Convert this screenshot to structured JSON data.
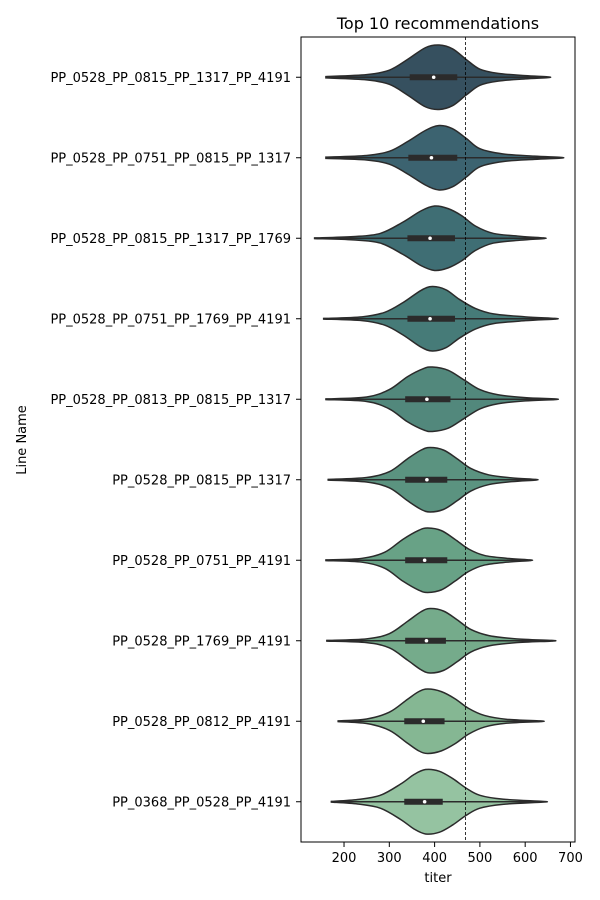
{
  "chart_data": {
    "type": "violin",
    "title": "Top 10 recommendations",
    "xlabel": "titer",
    "ylabel": "Line Name",
    "xlim": [
      105,
      710
    ],
    "xticks": [
      200,
      300,
      400,
      500,
      600,
      700
    ],
    "reference_line_x": 468,
    "grid": false,
    "categories": [
      "PP_0528_PP_0815_PP_1317_PP_4191",
      "PP_0528_PP_0751_PP_0815_PP_1317",
      "PP_0528_PP_0815_PP_1317_PP_1769",
      "PP_0528_PP_0751_PP_1769_PP_4191",
      "PP_0528_PP_0813_PP_0815_PP_1317",
      "PP_0528_PP_0815_PP_1317",
      "PP_0528_PP_0751_PP_4191",
      "PP_0528_PP_1769_PP_4191",
      "PP_0528_PP_0812_PP_4191",
      "PP_0368_PP_0528_PP_4191"
    ],
    "colors": [
      "#36505f",
      "#3c6370",
      "#3f6e74",
      "#467b78",
      "#52887c",
      "#5b9380",
      "#68a286",
      "#75ab8b",
      "#85b793",
      "#95c3a1"
    ],
    "violins": [
      {
        "min": 160,
        "max": 650,
        "q1": 345,
        "median": 398,
        "q3": 450,
        "profile": [
          [
            160,
            0.02
          ],
          [
            250,
            0.08
          ],
          [
            300,
            0.22
          ],
          [
            340,
            0.55
          ],
          [
            380,
            0.92
          ],
          [
            410,
            1.0
          ],
          [
            440,
            0.88
          ],
          [
            470,
            0.55
          ],
          [
            500,
            0.25
          ],
          [
            540,
            0.12
          ],
          [
            600,
            0.05
          ],
          [
            650,
            0.01
          ]
        ]
      },
      {
        "min": 160,
        "max": 678,
        "q1": 342,
        "median": 393,
        "q3": 450,
        "profile": [
          [
            160,
            0.02
          ],
          [
            250,
            0.07
          ],
          [
            300,
            0.2
          ],
          [
            340,
            0.5
          ],
          [
            380,
            0.85
          ],
          [
            410,
            1.0
          ],
          [
            440,
            0.9
          ],
          [
            470,
            0.6
          ],
          [
            500,
            0.28
          ],
          [
            550,
            0.12
          ],
          [
            620,
            0.05
          ],
          [
            678,
            0.01
          ]
        ]
      },
      {
        "min": 135,
        "max": 640,
        "q1": 340,
        "median": 390,
        "q3": 445,
        "profile": [
          [
            135,
            0.01
          ],
          [
            220,
            0.05
          ],
          [
            280,
            0.15
          ],
          [
            330,
            0.5
          ],
          [
            370,
            0.85
          ],
          [
            400,
            1.0
          ],
          [
            430,
            0.92
          ],
          [
            460,
            0.7
          ],
          [
            490,
            0.38
          ],
          [
            530,
            0.15
          ],
          [
            590,
            0.06
          ],
          [
            640,
            0.01
          ]
        ]
      },
      {
        "min": 155,
        "max": 665,
        "q1": 340,
        "median": 390,
        "q3": 445,
        "profile": [
          [
            155,
            0.01
          ],
          [
            240,
            0.06
          ],
          [
            290,
            0.2
          ],
          [
            330,
            0.5
          ],
          [
            370,
            0.88
          ],
          [
            395,
            1.0
          ],
          [
            425,
            0.9
          ],
          [
            455,
            0.6
          ],
          [
            490,
            0.32
          ],
          [
            530,
            0.15
          ],
          [
            600,
            0.06
          ],
          [
            665,
            0.01
          ]
        ]
      },
      {
        "min": 160,
        "max": 665,
        "q1": 335,
        "median": 383,
        "q3": 435,
        "profile": [
          [
            160,
            0.01
          ],
          [
            250,
            0.07
          ],
          [
            300,
            0.3
          ],
          [
            340,
            0.7
          ],
          [
            375,
            0.95
          ],
          [
            395,
            1.0
          ],
          [
            430,
            0.9
          ],
          [
            465,
            0.6
          ],
          [
            500,
            0.3
          ],
          [
            540,
            0.14
          ],
          [
            600,
            0.05
          ],
          [
            665,
            0.01
          ]
        ]
      },
      {
        "min": 165,
        "max": 622,
        "q1": 335,
        "median": 383,
        "q3": 428,
        "profile": [
          [
            165,
            0.01
          ],
          [
            250,
            0.07
          ],
          [
            300,
            0.25
          ],
          [
            340,
            0.65
          ],
          [
            370,
            0.92
          ],
          [
            390,
            1.0
          ],
          [
            420,
            0.92
          ],
          [
            450,
            0.65
          ],
          [
            480,
            0.35
          ],
          [
            520,
            0.15
          ],
          [
            570,
            0.06
          ],
          [
            622,
            0.01
          ]
        ]
      },
      {
        "min": 160,
        "max": 610,
        "q1": 335,
        "median": 378,
        "q3": 428,
        "profile": [
          [
            160,
            0.01
          ],
          [
            240,
            0.06
          ],
          [
            290,
            0.25
          ],
          [
            330,
            0.65
          ],
          [
            365,
            0.93
          ],
          [
            385,
            1.0
          ],
          [
            415,
            0.92
          ],
          [
            445,
            0.65
          ],
          [
            475,
            0.35
          ],
          [
            510,
            0.15
          ],
          [
            560,
            0.06
          ],
          [
            610,
            0.01
          ]
        ]
      },
      {
        "min": 162,
        "max": 658,
        "q1": 335,
        "median": 382,
        "q3": 425,
        "profile": [
          [
            162,
            0.01
          ],
          [
            250,
            0.06
          ],
          [
            300,
            0.22
          ],
          [
            340,
            0.6
          ],
          [
            370,
            0.9
          ],
          [
            390,
            1.0
          ],
          [
            420,
            0.92
          ],
          [
            450,
            0.65
          ],
          [
            480,
            0.35
          ],
          [
            520,
            0.16
          ],
          [
            580,
            0.06
          ],
          [
            658,
            0.01
          ]
        ]
      },
      {
        "min": 187,
        "max": 633,
        "q1": 333,
        "median": 375,
        "q3": 422,
        "profile": [
          [
            187,
            0.01
          ],
          [
            250,
            0.07
          ],
          [
            300,
            0.28
          ],
          [
            340,
            0.68
          ],
          [
            365,
            0.92
          ],
          [
            385,
            1.0
          ],
          [
            415,
            0.92
          ],
          [
            445,
            0.7
          ],
          [
            475,
            0.4
          ],
          [
            510,
            0.18
          ],
          [
            560,
            0.06
          ],
          [
            633,
            0.01
          ]
        ]
      },
      {
        "min": 172,
        "max": 638,
        "q1": 333,
        "median": 378,
        "q3": 418,
        "profile": [
          [
            172,
            0.01
          ],
          [
            230,
            0.07
          ],
          [
            280,
            0.2
          ],
          [
            325,
            0.55
          ],
          [
            355,
            0.85
          ],
          [
            380,
            1.0
          ],
          [
            410,
            0.95
          ],
          [
            440,
            0.72
          ],
          [
            470,
            0.42
          ],
          [
            500,
            0.2
          ],
          [
            550,
            0.08
          ],
          [
            638,
            0.01
          ]
        ]
      }
    ]
  }
}
